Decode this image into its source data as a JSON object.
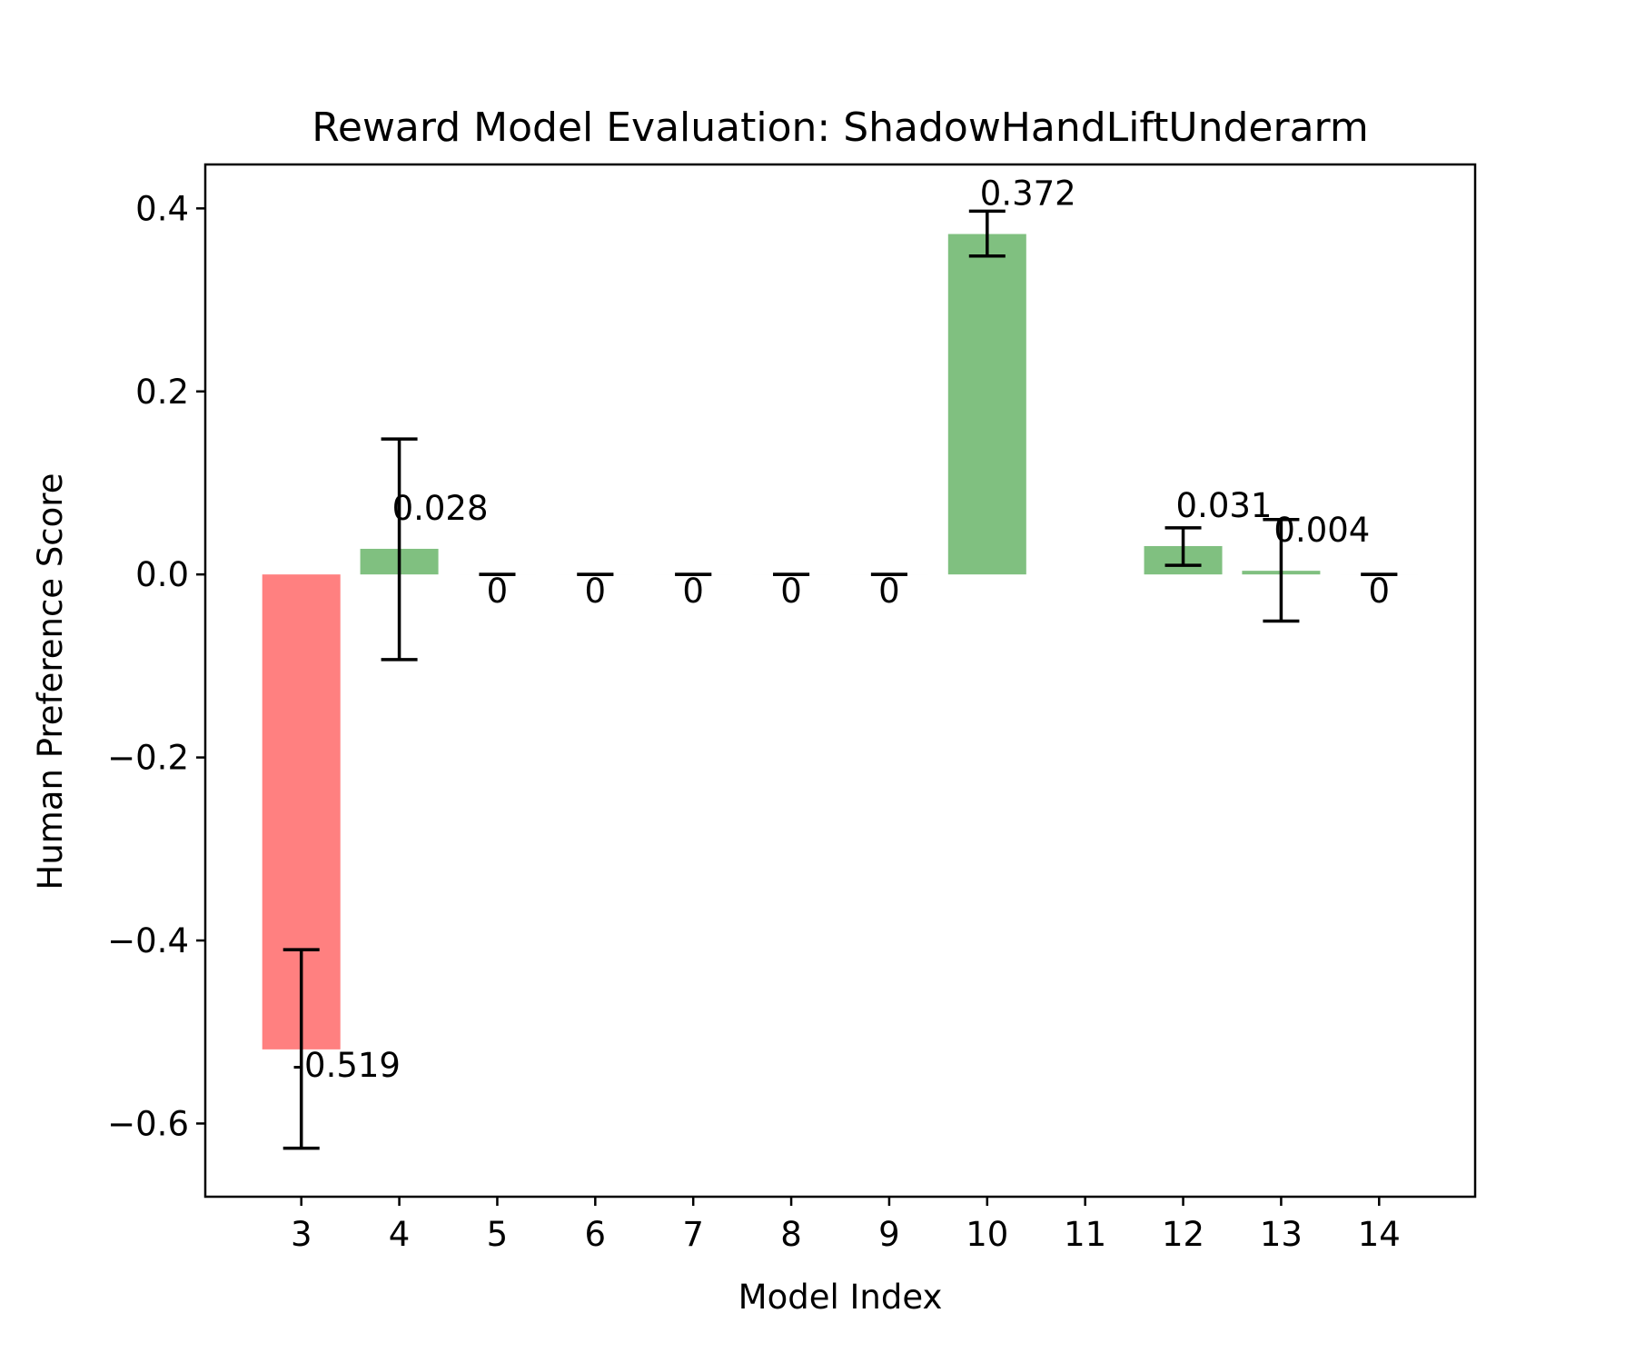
{
  "chart_data": {
    "type": "bar",
    "title": "Reward Model Evaluation: ShadowHandLiftUnderarm",
    "xlabel": "Model Index",
    "ylabel": "Human Preference Score",
    "ylim": [
      -0.68,
      0.448
    ],
    "grid": false,
    "positive_color": "#80c080",
    "negative_color": "#ff8080",
    "errorbar_color": "#000000",
    "y_ticks": [
      {
        "value": -0.6,
        "label": "−0.6"
      },
      {
        "value": -0.4,
        "label": "−0.4"
      },
      {
        "value": -0.2,
        "label": "−0.2"
      },
      {
        "value": 0.0,
        "label": "0.0"
      },
      {
        "value": 0.2,
        "label": "0.2"
      },
      {
        "value": 0.4,
        "label": "0.4"
      }
    ],
    "categories": [
      "3",
      "4",
      "5",
      "6",
      "7",
      "8",
      "9",
      "10",
      "11",
      "12",
      "13",
      "14"
    ],
    "bars": [
      {
        "x": 3,
        "value": -0.519,
        "err_low": -0.627,
        "err_high": -0.41,
        "label": "-0.519"
      },
      {
        "x": 4,
        "value": 0.028,
        "err_low": -0.093,
        "err_high": 0.148,
        "label": "0.028"
      },
      {
        "x": 5,
        "value": 0,
        "err_low": 0,
        "err_high": 0,
        "label": "0"
      },
      {
        "x": 6,
        "value": 0,
        "err_low": 0,
        "err_high": 0,
        "label": "0"
      },
      {
        "x": 7,
        "value": 0,
        "err_low": 0,
        "err_high": 0,
        "label": "0"
      },
      {
        "x": 8,
        "value": 0,
        "err_low": 0,
        "err_high": 0,
        "label": "0"
      },
      {
        "x": 9,
        "value": 0,
        "err_low": 0,
        "err_high": 0,
        "label": "0"
      },
      {
        "x": 10,
        "value": 0.372,
        "err_low": 0.348,
        "err_high": 0.397,
        "label": "0.372"
      },
      {
        "x": 12,
        "value": 0.031,
        "err_low": 0.01,
        "err_high": 0.051,
        "label": "0.031"
      },
      {
        "x": 13,
        "value": 0.004,
        "err_low": -0.051,
        "err_high": 0.06,
        "label": "0.004"
      },
      {
        "x": 14,
        "value": 0,
        "err_low": 0,
        "err_high": 0,
        "label": "0"
      }
    ]
  }
}
